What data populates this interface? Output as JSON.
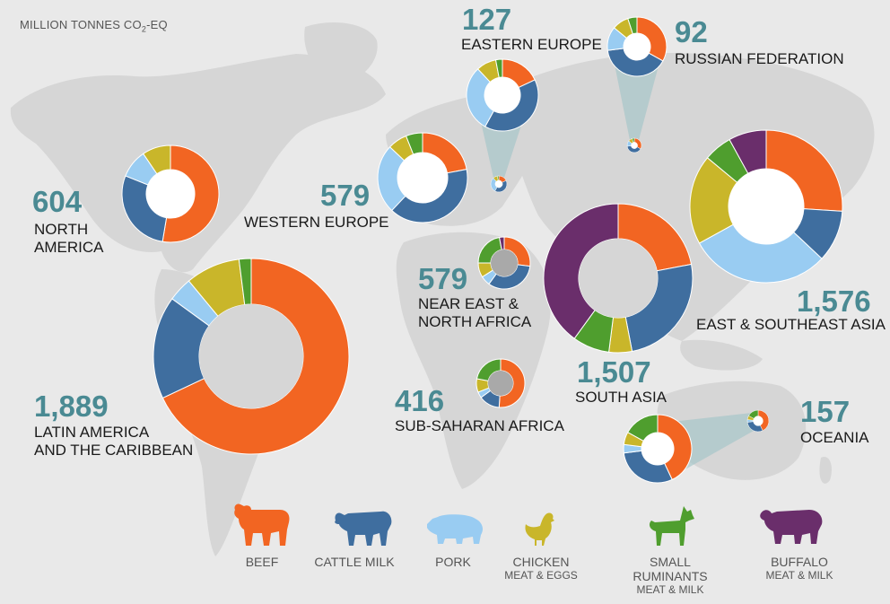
{
  "unit_label": "MILLION TONNES CO",
  "unit_sub": "2",
  "unit_suffix": "-EQ",
  "colors": {
    "beef": "#f26522",
    "cattle_milk": "#3f6e9f",
    "pork": "#99ccf2",
    "chicken": "#c9b62a",
    "small_ruminants": "#4f9e2e",
    "buffalo": "#6a2e6b",
    "background": "#e9e9e9",
    "land": "#d6d6d6",
    "value_text": "#4a8a93"
  },
  "legend": [
    {
      "key": "beef",
      "label": "BEEF",
      "sub": "",
      "icon": "cow-icon"
    },
    {
      "key": "cattle_milk",
      "label": "CATTLE MILK",
      "sub": "",
      "icon": "dairy-cow-icon"
    },
    {
      "key": "pork",
      "label": "PORK",
      "sub": "",
      "icon": "pig-icon"
    },
    {
      "key": "chicken",
      "label": "CHICKEN",
      "sub": "MEAT & EGGS",
      "icon": "chicken-icon"
    },
    {
      "key": "small_ruminants",
      "label": "SMALL RUMINANTS",
      "sub": "MEAT & MILK",
      "icon": "goat-icon"
    },
    {
      "key": "buffalo",
      "label": "BUFFALO",
      "sub": "MEAT & MILK",
      "icon": "buffalo-icon"
    }
  ],
  "chart_data": {
    "type": "pie",
    "variant": "donut",
    "title": "MILLION TONNES CO2-EQ",
    "categories": [
      "BEEF",
      "CATTLE MILK",
      "PORK",
      "CHICKEN MEAT & EGGS",
      "SMALL RUMINANTS MEAT & MILK",
      "BUFFALO MEAT & MILK"
    ],
    "regions": [
      {
        "id": "north_america",
        "name_lines": [
          "NORTH",
          "AMERICA"
        ],
        "total": "604",
        "shares": [
          50,
          27,
          9,
          9,
          0,
          0
        ]
      },
      {
        "id": "latin_america",
        "name_lines": [
          "LATIN AMERICA",
          "AND THE CARIBBEAN"
        ],
        "total": "1,889",
        "shares": [
          68,
          17,
          4,
          9,
          2,
          0
        ]
      },
      {
        "id": "western_europe",
        "name_lines": [
          "WESTERN EUROPE"
        ],
        "total": "579",
        "shares": [
          22,
          40,
          25,
          7,
          6,
          0
        ]
      },
      {
        "id": "eastern_europe",
        "name_lines": [
          "EASTERN EUROPE"
        ],
        "total": "127",
        "shares": [
          18,
          40,
          30,
          9,
          3,
          0
        ]
      },
      {
        "id": "russian_federation",
        "name_lines": [
          "RUSSIAN FEDERATION"
        ],
        "total": "92",
        "shares": [
          33,
          40,
          13,
          9,
          5,
          0
        ]
      },
      {
        "id": "near_east",
        "name_lines": [
          "NEAR EAST &",
          "NORTH AFRICA"
        ],
        "total": "579",
        "shares": [
          27,
          33,
          6,
          9,
          22,
          3
        ]
      },
      {
        "id": "sub_saharan",
        "name_lines": [
          "SUB-SAHARAN AFRICA"
        ],
        "total": "416",
        "shares": [
          51,
          14,
          4,
          9,
          22,
          0
        ]
      },
      {
        "id": "south_asia",
        "name_lines": [
          "SOUTH ASIA"
        ],
        "total": "1,507",
        "shares": [
          22,
          25,
          0,
          5,
          8,
          40
        ]
      },
      {
        "id": "east_asia",
        "name_lines": [
          "EAST & SOUTHEAST ASIA"
        ],
        "total": "1,576",
        "shares": [
          26,
          11,
          30,
          19,
          6,
          8
        ]
      },
      {
        "id": "oceania",
        "name_lines": [
          "OCEANIA"
        ],
        "total": "157",
        "shares": [
          43,
          30,
          4,
          6,
          17,
          0
        ]
      }
    ]
  }
}
